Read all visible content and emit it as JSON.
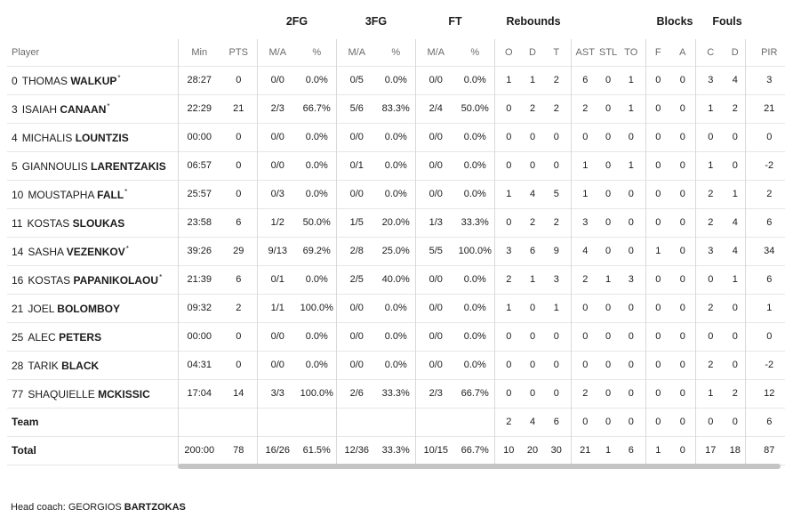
{
  "group_headers": {
    "fg2": "2FG",
    "fg3": "3FG",
    "ft": "FT",
    "rebounds": "Rebounds",
    "blocks": "Blocks",
    "fouls": "Fouls"
  },
  "columns": {
    "player": "Player",
    "min": "Min",
    "pts": "PTS",
    "fg2_ma": "M/A",
    "fg2_pct": "%",
    "fg3_ma": "M/A",
    "fg3_pct": "%",
    "ft_ma": "M/A",
    "ft_pct": "%",
    "reb_o": "O",
    "reb_d": "D",
    "reb_t": "T",
    "ast": "AST",
    "stl": "STL",
    "to": "TO",
    "blk_f": "F",
    "blk_a": "A",
    "foul_c": "C",
    "foul_d": "D",
    "pir": "PIR"
  },
  "players": [
    {
      "num": "0",
      "first": "THOMAS",
      "last": "WALKUP",
      "star": "*",
      "min": "28:27",
      "pts": "0",
      "fg2_ma": "0/0",
      "fg2_pct": "0.0%",
      "fg3_ma": "0/5",
      "fg3_pct": "0.0%",
      "ft_ma": "0/0",
      "ft_pct": "0.0%",
      "reb_o": "1",
      "reb_d": "1",
      "reb_t": "2",
      "ast": "6",
      "stl": "0",
      "to": "1",
      "blk_f": "0",
      "blk_a": "0",
      "foul_c": "3",
      "foul_d": "4",
      "pir": "3"
    },
    {
      "num": "3",
      "first": "ISAIAH",
      "last": "CANAAN",
      "star": "*",
      "min": "22:29",
      "pts": "21",
      "fg2_ma": "2/3",
      "fg2_pct": "66.7%",
      "fg3_ma": "5/6",
      "fg3_pct": "83.3%",
      "ft_ma": "2/4",
      "ft_pct": "50.0%",
      "reb_o": "0",
      "reb_d": "2",
      "reb_t": "2",
      "ast": "2",
      "stl": "0",
      "to": "1",
      "blk_f": "0",
      "blk_a": "0",
      "foul_c": "1",
      "foul_d": "2",
      "pir": "21"
    },
    {
      "num": "4",
      "first": "MICHALIS",
      "last": "LOUNTZIS",
      "star": "",
      "min": "00:00",
      "pts": "0",
      "fg2_ma": "0/0",
      "fg2_pct": "0.0%",
      "fg3_ma": "0/0",
      "fg3_pct": "0.0%",
      "ft_ma": "0/0",
      "ft_pct": "0.0%",
      "reb_o": "0",
      "reb_d": "0",
      "reb_t": "0",
      "ast": "0",
      "stl": "0",
      "to": "0",
      "blk_f": "0",
      "blk_a": "0",
      "foul_c": "0",
      "foul_d": "0",
      "pir": "0"
    },
    {
      "num": "5",
      "first": "GIANNOULIS",
      "last": "LARENTZAKIS",
      "star": "",
      "min": "06:57",
      "pts": "0",
      "fg2_ma": "0/0",
      "fg2_pct": "0.0%",
      "fg3_ma": "0/1",
      "fg3_pct": "0.0%",
      "ft_ma": "0/0",
      "ft_pct": "0.0%",
      "reb_o": "0",
      "reb_d": "0",
      "reb_t": "0",
      "ast": "1",
      "stl": "0",
      "to": "1",
      "blk_f": "0",
      "blk_a": "0",
      "foul_c": "1",
      "foul_d": "0",
      "pir": "-2"
    },
    {
      "num": "10",
      "first": "MOUSTAPHA",
      "last": "FALL",
      "star": "*",
      "min": "25:57",
      "pts": "0",
      "fg2_ma": "0/3",
      "fg2_pct": "0.0%",
      "fg3_ma": "0/0",
      "fg3_pct": "0.0%",
      "ft_ma": "0/0",
      "ft_pct": "0.0%",
      "reb_o": "1",
      "reb_d": "4",
      "reb_t": "5",
      "ast": "1",
      "stl": "0",
      "to": "0",
      "blk_f": "0",
      "blk_a": "0",
      "foul_c": "2",
      "foul_d": "1",
      "pir": "2"
    },
    {
      "num": "11",
      "first": "KOSTAS",
      "last": "SLOUKAS",
      "star": "",
      "min": "23:58",
      "pts": "6",
      "fg2_ma": "1/2",
      "fg2_pct": "50.0%",
      "fg3_ma": "1/5",
      "fg3_pct": "20.0%",
      "ft_ma": "1/3",
      "ft_pct": "33.3%",
      "reb_o": "0",
      "reb_d": "2",
      "reb_t": "2",
      "ast": "3",
      "stl": "0",
      "to": "0",
      "blk_f": "0",
      "blk_a": "0",
      "foul_c": "2",
      "foul_d": "4",
      "pir": "6"
    },
    {
      "num": "14",
      "first": "SASHA",
      "last": "VEZENKOV",
      "star": "*",
      "min": "39:26",
      "pts": "29",
      "fg2_ma": "9/13",
      "fg2_pct": "69.2%",
      "fg3_ma": "2/8",
      "fg3_pct": "25.0%",
      "ft_ma": "5/5",
      "ft_pct": "100.0%",
      "reb_o": "3",
      "reb_d": "6",
      "reb_t": "9",
      "ast": "4",
      "stl": "0",
      "to": "0",
      "blk_f": "1",
      "blk_a": "0",
      "foul_c": "3",
      "foul_d": "4",
      "pir": "34"
    },
    {
      "num": "16",
      "first": "KOSTAS",
      "last": "PAPANIKOLAOU",
      "star": "*",
      "min": "21:39",
      "pts": "6",
      "fg2_ma": "0/1",
      "fg2_pct": "0.0%",
      "fg3_ma": "2/5",
      "fg3_pct": "40.0%",
      "ft_ma": "0/0",
      "ft_pct": "0.0%",
      "reb_o": "2",
      "reb_d": "1",
      "reb_t": "3",
      "ast": "2",
      "stl": "1",
      "to": "3",
      "blk_f": "0",
      "blk_a": "0",
      "foul_c": "0",
      "foul_d": "1",
      "pir": "6"
    },
    {
      "num": "21",
      "first": "JOEL",
      "last": "BOLOMBOY",
      "star": "",
      "min": "09:32",
      "pts": "2",
      "fg2_ma": "1/1",
      "fg2_pct": "100.0%",
      "fg3_ma": "0/0",
      "fg3_pct": "0.0%",
      "ft_ma": "0/0",
      "ft_pct": "0.0%",
      "reb_o": "1",
      "reb_d": "0",
      "reb_t": "1",
      "ast": "0",
      "stl": "0",
      "to": "0",
      "blk_f": "0",
      "blk_a": "0",
      "foul_c": "2",
      "foul_d": "0",
      "pir": "1"
    },
    {
      "num": "25",
      "first": "ALEC",
      "last": "PETERS",
      "star": "",
      "min": "00:00",
      "pts": "0",
      "fg2_ma": "0/0",
      "fg2_pct": "0.0%",
      "fg3_ma": "0/0",
      "fg3_pct": "0.0%",
      "ft_ma": "0/0",
      "ft_pct": "0.0%",
      "reb_o": "0",
      "reb_d": "0",
      "reb_t": "0",
      "ast": "0",
      "stl": "0",
      "to": "0",
      "blk_f": "0",
      "blk_a": "0",
      "foul_c": "0",
      "foul_d": "0",
      "pir": "0"
    },
    {
      "num": "28",
      "first": "TARIK",
      "last": "BLACK",
      "star": "",
      "min": "04:31",
      "pts": "0",
      "fg2_ma": "0/0",
      "fg2_pct": "0.0%",
      "fg3_ma": "0/0",
      "fg3_pct": "0.0%",
      "ft_ma": "0/0",
      "ft_pct": "0.0%",
      "reb_o": "0",
      "reb_d": "0",
      "reb_t": "0",
      "ast": "0",
      "stl": "0",
      "to": "0",
      "blk_f": "0",
      "blk_a": "0",
      "foul_c": "2",
      "foul_d": "0",
      "pir": "-2"
    },
    {
      "num": "77",
      "first": "SHAQUIELLE",
      "last": "MCKISSIC",
      "star": "",
      "min": "17:04",
      "pts": "14",
      "fg2_ma": "3/3",
      "fg2_pct": "100.0%",
      "fg3_ma": "2/6",
      "fg3_pct": "33.3%",
      "ft_ma": "2/3",
      "ft_pct": "66.7%",
      "reb_o": "0",
      "reb_d": "0",
      "reb_t": "0",
      "ast": "2",
      "stl": "0",
      "to": "0",
      "blk_f": "0",
      "blk_a": "0",
      "foul_c": "1",
      "foul_d": "2",
      "pir": "12"
    }
  ],
  "team_row": {
    "label": "Team",
    "min": "",
    "pts": "",
    "fg2_ma": "",
    "fg2_pct": "",
    "fg3_ma": "",
    "fg3_pct": "",
    "ft_ma": "",
    "ft_pct": "",
    "reb_o": "2",
    "reb_d": "4",
    "reb_t": "6",
    "ast": "0",
    "stl": "0",
    "to": "0",
    "blk_f": "0",
    "blk_a": "0",
    "foul_c": "0",
    "foul_d": "0",
    "pir": "6"
  },
  "total_row": {
    "label": "Total",
    "min": "200:00",
    "pts": "78",
    "fg2_ma": "16/26",
    "fg2_pct": "61.5%",
    "fg3_ma": "12/36",
    "fg3_pct": "33.3%",
    "ft_ma": "10/15",
    "ft_pct": "66.7%",
    "reb_o": "10",
    "reb_d": "20",
    "reb_t": "30",
    "ast": "21",
    "stl": "1",
    "to": "6",
    "blk_f": "1",
    "blk_a": "0",
    "foul_c": "17",
    "foul_d": "18",
    "pir": "87"
  },
  "coach": {
    "label": "Head coach:",
    "first": "GEORGIOS",
    "last": "BARTZOKAS"
  }
}
